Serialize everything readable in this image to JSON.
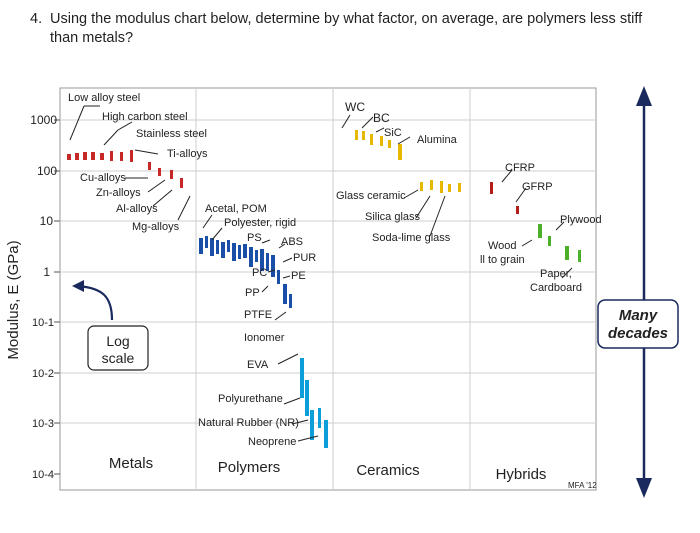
{
  "question": {
    "number": "4.",
    "text": "Using the modulus chart below, determine by what factor, on average, are polymers less stiff than metals?"
  },
  "axis": {
    "ylabel": "Modulus, E (GPa)",
    "ticks": [
      "1000",
      "100",
      "10",
      "1",
      "10-1",
      "10-2",
      "10-3",
      "10-4"
    ]
  },
  "categories": [
    "Metals",
    "Polymers",
    "Ceramics",
    "Hybrids"
  ],
  "materials": {
    "metals": [
      "Low alloy steel",
      "High carbon steel",
      "Stainless steel",
      "Ti-alloys",
      "Cu-alloys",
      "Zn-alloys",
      "Al-alloys",
      "Mg-alloys"
    ],
    "polymers": [
      "Acetal, POM",
      "Polyester, rigid",
      "PS",
      "ABS",
      "PUR",
      "PC",
      "PE",
      "PP",
      "PTFE",
      "Ionomer",
      "EVA",
      "Polyurethane",
      "Natural Rubber (NR)",
      "Neoprene"
    ],
    "ceramics": [
      "WC",
      "BC",
      "SiC",
      "Alumina",
      "Glass ceramic",
      "Silica glass",
      "Soda-lime glass"
    ],
    "hybrids": [
      "CFRP",
      "GFRP",
      "Plywood",
      "Wood",
      "ll to grain",
      "Paper,",
      "Cardboard"
    ]
  },
  "annotations": {
    "log_scale_line1": "Log",
    "log_scale_line2": "scale",
    "many": "Many",
    "decades": "decades",
    "credit": "MFA '12"
  },
  "colors": {
    "metals": "#c62828",
    "polymers": "#1a4fa8",
    "elastomers": "#0b9ed9",
    "ceramics": "#e6b800",
    "hybrids_red": "#b71c1c",
    "hybrids_green": "#4caf2a",
    "arrow": "#1b2a5e"
  }
}
